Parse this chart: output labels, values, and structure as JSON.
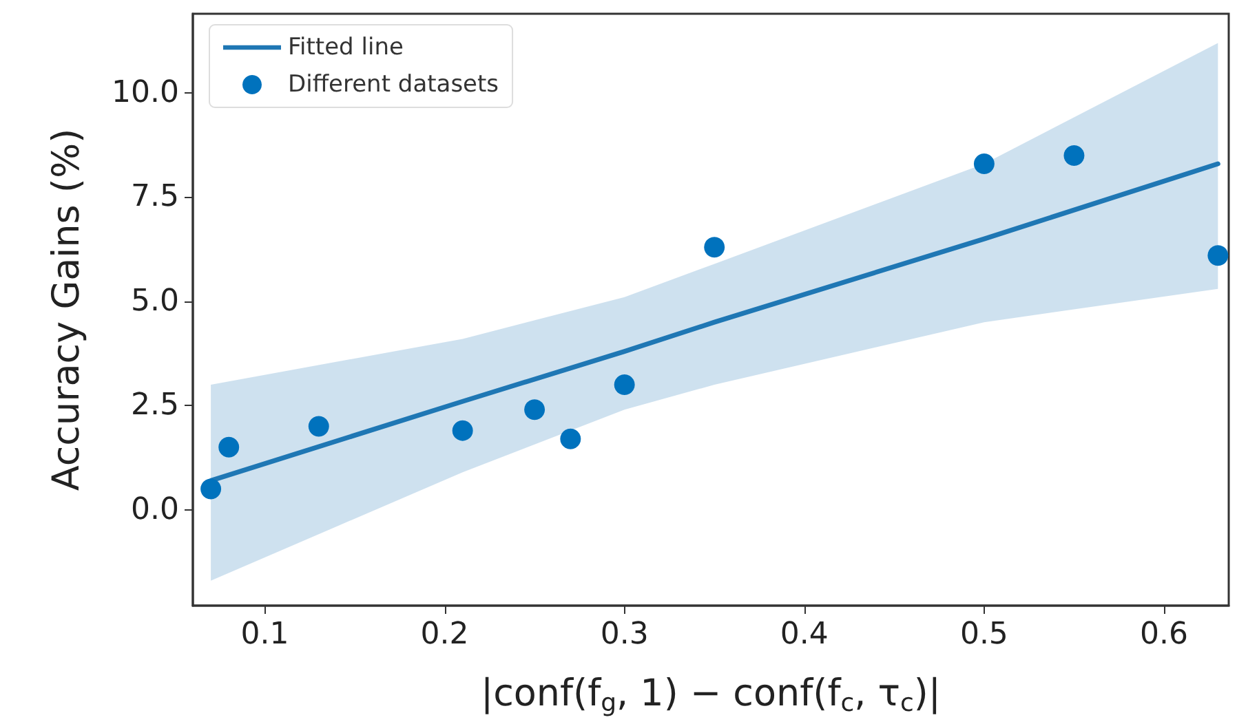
{
  "chart_data": {
    "type": "scatter",
    "xlabel": "|conf(f$_{g}$, 1) − conf(f$_{c}$, τ$_{c}$)|",
    "ylabel": "Accuracy Gains (%)",
    "xlim": [
      0.06,
      0.636
    ],
    "ylim": [
      -2.3,
      11.9
    ],
    "xticks": [
      0.1,
      0.2,
      0.3,
      0.4,
      0.5,
      0.6
    ],
    "yticks": [
      {
        "value": 0,
        "label": "0.0"
      },
      2.5,
      {
        "value": 5,
        "label": "5.0"
      },
      7.5,
      {
        "value": 10,
        "label": "10.0"
      }
    ],
    "grid": false,
    "legend": "top left",
    "series": [
      {
        "name": "Fitted line",
        "type": "line",
        "color": "#1f77b4",
        "line_style": "solid",
        "x": [
          0.07,
          0.21,
          0.3,
          0.35,
          0.5,
          0.63
        ],
        "values": [
          0.7,
          2.6,
          3.8,
          4.5,
          6.5,
          8.3
        ],
        "lower": [
          -1.7,
          0.9,
          2.4,
          3.0,
          4.5,
          5.3
        ],
        "upper": [
          3.0,
          4.1,
          5.1,
          5.9,
          8.3,
          11.2
        ]
      },
      {
        "name": "Different datasets",
        "marker": "circle",
        "color": "#0072bd",
        "x": [
          0.07,
          0.08,
          0.13,
          0.21,
          0.25,
          0.27,
          0.3,
          0.35,
          0.5,
          0.55,
          0.63
        ],
        "values": [
          0.5,
          1.5,
          2.0,
          1.9,
          2.4,
          1.7,
          3.0,
          6.3,
          8.3,
          8.5,
          6.1
        ]
      }
    ]
  }
}
